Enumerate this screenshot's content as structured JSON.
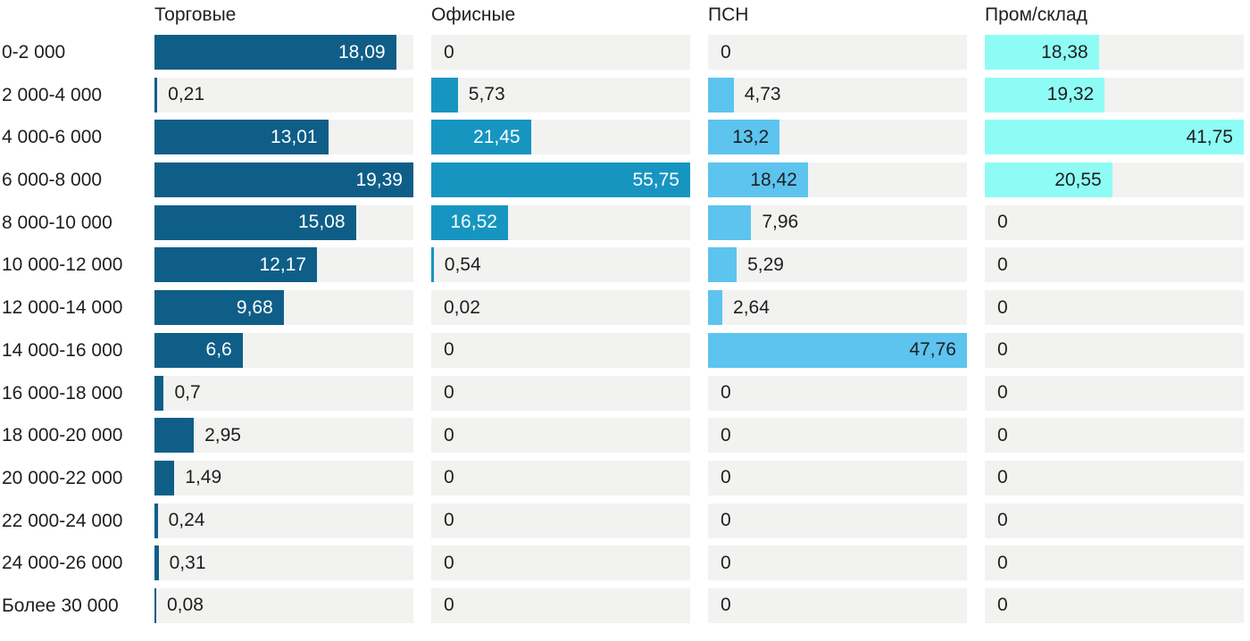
{
  "chart_data": {
    "type": "bar",
    "orientation": "horizontal",
    "layout": "small-multiples-per-column",
    "scaling_note": "each column's bars are scaled to that column's own maximum value",
    "grid": "off",
    "background": "#ffffff",
    "track_color": "#f2f2f1",
    "text_color": "#1f1f1f",
    "categories": [
      "0-2 000",
      "2 000-4 000",
      "4 000-6 000",
      "6 000-8 000",
      "8 000-10 000",
      "10 000-12 000",
      "12 000-14 000",
      "14 000-16 000",
      "16 000-18 000",
      "18 000-20 000",
      "20 000-22 000",
      "22 000-24 000",
      "24 000-26 000",
      "Более 30 000"
    ],
    "series": [
      {
        "name": "Торговые",
        "color": "#0f5e88",
        "label_color_inside": "#ffffff",
        "max": 19.39,
        "values": [
          18.09,
          0.21,
          13.01,
          19.39,
          15.08,
          12.17,
          9.68,
          6.6,
          0.7,
          2.95,
          1.49,
          0.24,
          0.31,
          0.08
        ],
        "labels": [
          "18,09",
          "0,21",
          "13,01",
          "19,39",
          "15,08",
          "12,17",
          "9,68",
          "6,6",
          "0,7",
          "2,95",
          "1,49",
          "0,24",
          "0,31",
          "0,08"
        ]
      },
      {
        "name": "Офисные",
        "color": "#1795c1",
        "label_color_inside": "#ffffff",
        "max": 55.75,
        "values": [
          0,
          5.73,
          21.45,
          55.75,
          16.52,
          0.54,
          0.02,
          0,
          0,
          0,
          0,
          0,
          0,
          0
        ],
        "labels": [
          "0",
          "5,73",
          "21,45",
          "55,75",
          "16,52",
          "0,54",
          "0,02",
          "0",
          "0",
          "0",
          "0",
          "0",
          "0",
          "0"
        ]
      },
      {
        "name": "ПСН",
        "color": "#5cc4ef",
        "label_color_inside": "#1f1f1f",
        "max": 47.76,
        "values": [
          0,
          4.73,
          13.2,
          18.42,
          7.96,
          5.29,
          2.64,
          47.76,
          0,
          0,
          0,
          0,
          0,
          0
        ],
        "labels": [
          "0",
          "4,73",
          "13,2",
          "18,42",
          "7,96",
          "5,29",
          "2,64",
          "47,76",
          "0",
          "0",
          "0",
          "0",
          "0",
          "0"
        ]
      },
      {
        "name": "Пром/склад",
        "color": "#8efcf5",
        "label_color_inside": "#1f1f1f",
        "max": 41.75,
        "values": [
          18.38,
          19.32,
          41.75,
          20.55,
          0,
          0,
          0,
          0,
          0,
          0,
          0,
          0,
          0,
          0
        ],
        "labels": [
          "18,38",
          "19,32",
          "41,75",
          "20,55",
          "0",
          "0",
          "0",
          "0",
          "0",
          "0",
          "0",
          "0",
          "0",
          "0"
        ]
      }
    ]
  }
}
